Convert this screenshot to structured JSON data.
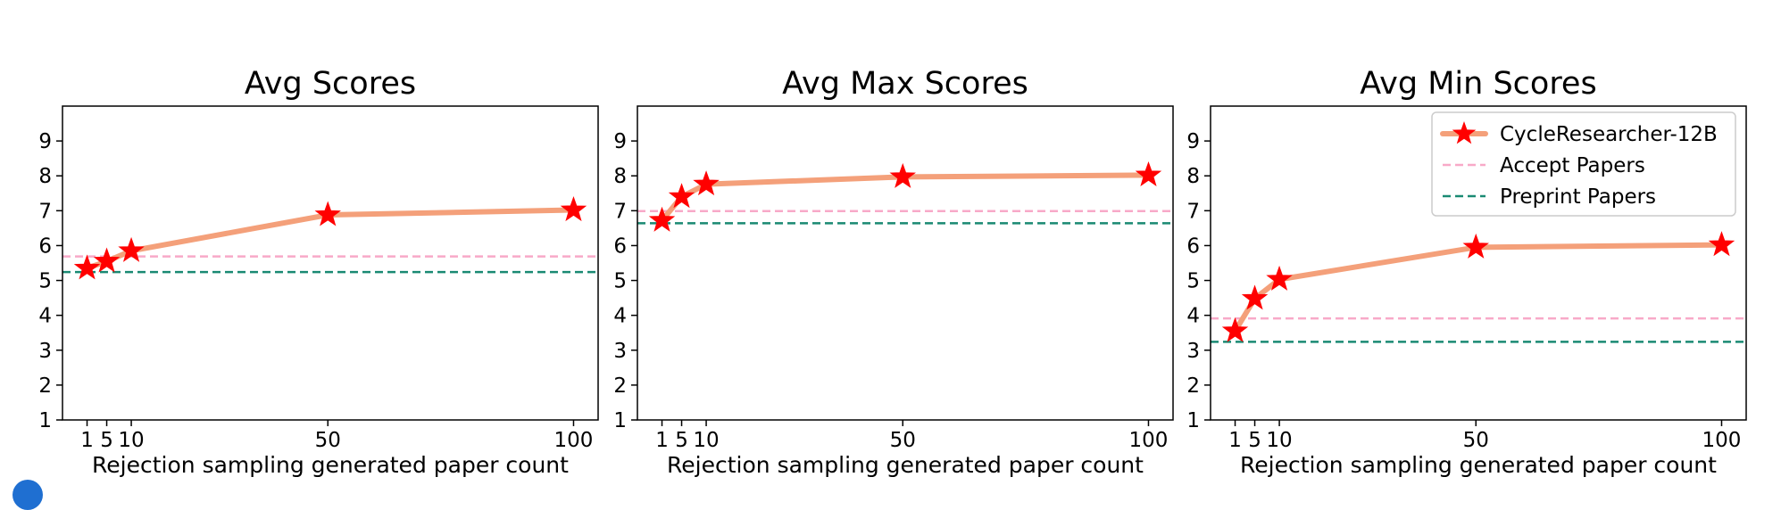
{
  "chart_data": [
    {
      "type": "line",
      "title": "Avg Scores",
      "xlabel": "Rejection sampling generated paper count",
      "ylabel": "",
      "x": [
        1,
        5,
        10,
        50,
        100
      ],
      "xticks": [
        "1",
        "5",
        "10",
        "50",
        "100"
      ],
      "yticks": [
        "1",
        "2",
        "3",
        "4",
        "5",
        "6",
        "7",
        "8",
        "9"
      ],
      "xlim": [
        -4,
        105
      ],
      "ylim": [
        1,
        10
      ],
      "series": [
        {
          "name": "CycleResearcher-12B",
          "values": [
            5.35,
            5.55,
            5.85,
            6.88,
            7.02
          ],
          "line_color": "#f4a07a",
          "marker": "star",
          "marker_color": "#ff0000"
        }
      ],
      "reference_lines": [
        {
          "name": "Accept Papers",
          "y": 5.69,
          "color": "#f8a9c8",
          "style": "dashed"
        },
        {
          "name": "Preprint Papers",
          "y": 5.24,
          "color": "#1a8a73",
          "style": "dashed"
        }
      ],
      "grid": false,
      "legend": null
    },
    {
      "type": "line",
      "title": "Avg Max Scores",
      "xlabel": "Rejection sampling generated paper count",
      "ylabel": "",
      "x": [
        1,
        5,
        10,
        50,
        100
      ],
      "xticks": [
        "1",
        "5",
        "10",
        "50",
        "100"
      ],
      "yticks": [
        "1",
        "2",
        "3",
        "4",
        "5",
        "6",
        "7",
        "8",
        "9"
      ],
      "xlim": [
        -4,
        105
      ],
      "ylim": [
        1,
        10
      ],
      "series": [
        {
          "name": "CycleResearcher-12B",
          "values": [
            6.72,
            7.4,
            7.76,
            7.97,
            8.02
          ],
          "line_color": "#f4a07a",
          "marker": "star",
          "marker_color": "#ff0000"
        }
      ],
      "reference_lines": [
        {
          "name": "Accept Papers",
          "y": 6.99,
          "color": "#f8a9c8",
          "style": "dashed"
        },
        {
          "name": "Preprint Papers",
          "y": 6.64,
          "color": "#1a8a73",
          "style": "dashed"
        }
      ],
      "grid": false,
      "legend": null
    },
    {
      "type": "line",
      "title": "Avg Min Scores",
      "xlabel": "Rejection sampling generated paper count",
      "ylabel": "",
      "x": [
        1,
        5,
        10,
        50,
        100
      ],
      "xticks": [
        "1",
        "5",
        "10",
        "50",
        "100"
      ],
      "yticks": [
        "1",
        "2",
        "3",
        "4",
        "5",
        "6",
        "7",
        "8",
        "9"
      ],
      "xlim": [
        -4,
        105
      ],
      "ylim": [
        1,
        10
      ],
      "series": [
        {
          "name": "CycleResearcher-12B",
          "values": [
            3.55,
            4.48,
            5.03,
            5.95,
            6.02
          ],
          "line_color": "#f4a07a",
          "marker": "star",
          "marker_color": "#ff0000"
        }
      ],
      "reference_lines": [
        {
          "name": "Accept Papers",
          "y": 3.91,
          "color": "#f8a9c8",
          "style": "dashed"
        },
        {
          "name": "Preprint Papers",
          "y": 3.24,
          "color": "#1a8a73",
          "style": "dashed"
        }
      ],
      "grid": false,
      "legend": "top-right"
    }
  ]
}
